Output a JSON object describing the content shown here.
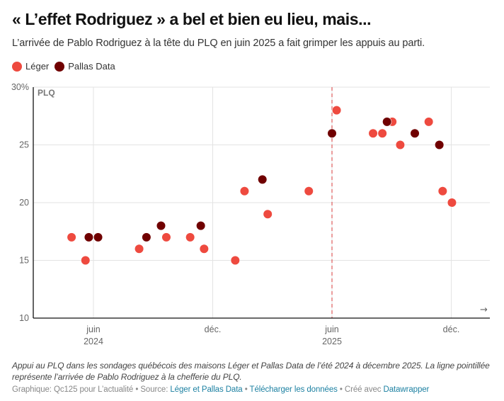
{
  "header": {
    "title": "« L’effet Rodriguez » a bel et bien eu lieu, mais...",
    "subtitle": "L’arrivée de Pablo Rodriguez à la tête du PLQ en juin 2025 a fait grimper les appuis au parti."
  },
  "legend": [
    {
      "label": "Léger",
      "color": "#ee4a3f"
    },
    {
      "label": "Pallas Data",
      "color": "#700000"
    }
  ],
  "chart_data": {
    "type": "scatter",
    "title": "« L’effet Rodriguez » a bel et bien eu lieu, mais...",
    "ylabel": "PLQ",
    "y_unit": "%",
    "ylim": [
      10,
      30
    ],
    "y_ticks": [
      {
        "value": 30,
        "label": "30%"
      },
      {
        "value": 25,
        "label": "25"
      },
      {
        "value": 20,
        "label": "20"
      },
      {
        "value": 15,
        "label": "15"
      },
      {
        "value": 10,
        "label": "10"
      }
    ],
    "xlim": [
      "2024-03-01",
      "2026-01-27"
    ],
    "x_ticks": [
      {
        "date": "2024-06-01",
        "label": "juin",
        "sublabel": "2024"
      },
      {
        "date": "2024-12-01",
        "label": "déc.",
        "sublabel": ""
      },
      {
        "date": "2025-06-01",
        "label": "juin",
        "sublabel": "2025"
      },
      {
        "date": "2025-12-01",
        "label": "déc.",
        "sublabel": ""
      }
    ],
    "grid": true,
    "legend_position": "top-left",
    "annotation": {
      "type": "vertical-dashed-line",
      "date": "2025-06-01",
      "color": "#e06666"
    },
    "arrow": "→",
    "series": [
      {
        "name": "Léger",
        "color": "#ee4a3f",
        "points": [
          {
            "date": "2024-04-28",
            "value": 17
          },
          {
            "date": "2024-05-19",
            "value": 15
          },
          {
            "date": "2024-08-10",
            "value": 16
          },
          {
            "date": "2024-09-21",
            "value": 17
          },
          {
            "date": "2024-10-27",
            "value": 17
          },
          {
            "date": "2024-11-18",
            "value": 16
          },
          {
            "date": "2025-01-05",
            "value": 15
          },
          {
            "date": "2025-01-19",
            "value": 21
          },
          {
            "date": "2025-02-24",
            "value": 19
          },
          {
            "date": "2025-04-26",
            "value": 21
          },
          {
            "date": "2025-06-08",
            "value": 28
          },
          {
            "date": "2025-08-03",
            "value": 26
          },
          {
            "date": "2025-08-17",
            "value": 26
          },
          {
            "date": "2025-09-02",
            "value": 27
          },
          {
            "date": "2025-09-14",
            "value": 25
          },
          {
            "date": "2025-10-27",
            "value": 27
          },
          {
            "date": "2025-11-18",
            "value": 21
          },
          {
            "date": "2025-12-02",
            "value": 20
          }
        ]
      },
      {
        "name": "Pallas Data",
        "color": "#700000",
        "points": [
          {
            "date": "2024-05-24",
            "value": 17
          },
          {
            "date": "2024-06-08",
            "value": 17
          },
          {
            "date": "2024-08-21",
            "value": 17
          },
          {
            "date": "2024-09-13",
            "value": 18
          },
          {
            "date": "2024-11-13",
            "value": 18
          },
          {
            "date": "2025-02-16",
            "value": 22
          },
          {
            "date": "2025-06-01",
            "value": 26
          },
          {
            "date": "2025-08-24",
            "value": 27
          },
          {
            "date": "2025-10-06",
            "value": 26
          },
          {
            "date": "2025-11-13",
            "value": 25
          }
        ]
      }
    ]
  },
  "footer": {
    "notes": "Appui au PLQ dans les sondages québécois des maisons Léger et Pallas Data de l’été 2024 à décembre 2025. La ligne pointillée représente l’arrivée de Pablo Rodriguez à la chefferie du PLQ.",
    "credit_prefix": "Graphique: Qc125 pour L’actualité",
    "separator": " • ",
    "source_label": "Source: ",
    "source_link": "Léger et Pallas Data",
    "download_link": "Télécharger les données",
    "made_with": "Créé avec ",
    "datawrapper_link": "Datawrapper"
  }
}
